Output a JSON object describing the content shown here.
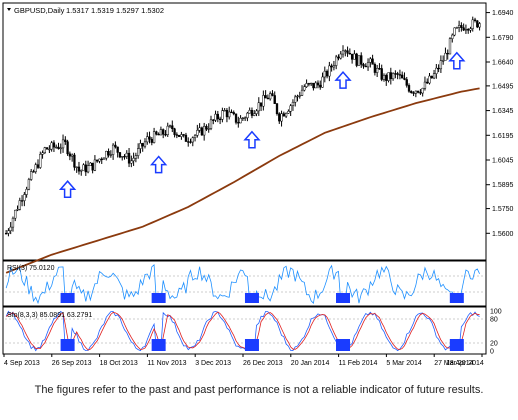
{
  "header": {
    "symbol_label": "GBPUSD,Daily",
    "ohlc_values": "1.5317 1.5319 1.5297 1.5302"
  },
  "chart_data": {
    "type": "candlestick",
    "symbol": "GBPUSD",
    "timeframe": "Daily",
    "price_axis": {
      "ylim": [
        1.545,
        1.698
      ],
      "ticks": [
        "1.6940",
        "1.6790",
        "1.6640",
        "1.6495",
        "1.6345",
        "1.6195",
        "1.6045",
        "1.5895",
        "1.5750",
        "1.5600"
      ]
    },
    "x_ticks": [
      "4 Sep 2013",
      "26 Sep 2013",
      "18 Oct 2013",
      "11 Nov 2013",
      "3 Dec 2013",
      "26 Dec 2013",
      "20 Jan 2014",
      "11 Feb 2014",
      "5 Mar 2014",
      "27 Mar 2014",
      "18 Apr 2014"
    ],
    "price_path": [
      [
        0,
        1.56
      ],
      [
        8,
        1.586
      ],
      [
        17,
        1.611
      ],
      [
        26,
        1.614
      ],
      [
        32,
        1.598
      ],
      [
        38,
        1.601
      ],
      [
        43,
        1.608
      ],
      [
        47,
        1.612
      ],
      [
        55,
        1.604
      ],
      [
        62,
        1.617
      ],
      [
        68,
        1.62
      ],
      [
        73,
        1.624
      ],
      [
        78,
        1.617
      ],
      [
        84,
        1.62
      ],
      [
        90,
        1.627
      ],
      [
        96,
        1.634
      ],
      [
        102,
        1.628
      ],
      [
        110,
        1.637
      ],
      [
        116,
        1.644
      ],
      [
        120,
        1.631
      ],
      [
        125,
        1.638
      ],
      [
        131,
        1.649
      ],
      [
        137,
        1.65
      ],
      [
        142,
        1.659
      ],
      [
        148,
        1.674
      ],
      [
        154,
        1.665
      ],
      [
        160,
        1.663
      ],
      [
        166,
        1.654
      ],
      [
        172,
        1.656
      ],
      [
        178,
        1.647
      ],
      [
        183,
        1.648
      ],
      [
        188,
        1.656
      ],
      [
        193,
        1.668
      ],
      [
        197,
        1.682
      ],
      [
        201,
        1.686
      ],
      [
        205,
        1.687
      ],
      [
        208,
        1.688
      ]
    ],
    "series": [
      {
        "name": "MA",
        "color": "#8b3a0e",
        "values": [
          [
            0,
            1.536
          ],
          [
            20,
            1.547
          ],
          [
            40,
            1.5555
          ],
          [
            60,
            1.564
          ],
          [
            80,
            1.576
          ],
          [
            100,
            1.591
          ],
          [
            120,
            1.607
          ],
          [
            140,
            1.621
          ],
          [
            160,
            1.6305
          ],
          [
            180,
            1.639
          ],
          [
            200,
            1.646
          ],
          [
            208,
            1.648
          ]
        ]
      }
    ],
    "up_arrows_at_index": [
      27,
      67,
      108,
      148,
      198
    ],
    "indicators": [
      {
        "label": "RSI(3) 75.0120",
        "type": "line",
        "color": "#1e90ff",
        "ylim": [
          0,
          100
        ],
        "levels": [
          70,
          30
        ],
        "signal_index": [
          27,
          67,
          108,
          148,
          198
        ],
        "signal_color": "#1a3cff"
      },
      {
        "label": "Sto(8,3,3) 85.0891 63.2791",
        "type": "line",
        "colors": [
          "#2060ff",
          "#e02020"
        ],
        "ylim": [
          0,
          100
        ],
        "ticks": [
          "100",
          "80",
          "20",
          "0"
        ],
        "levels": [
          80,
          20
        ],
        "signal_index": [
          27,
          67,
          108,
          148,
          198
        ],
        "signal_color": "#1a3cff"
      }
    ]
  },
  "disclaimer": "The figures refer to the past and past performance is not a reliable indicator of future results."
}
